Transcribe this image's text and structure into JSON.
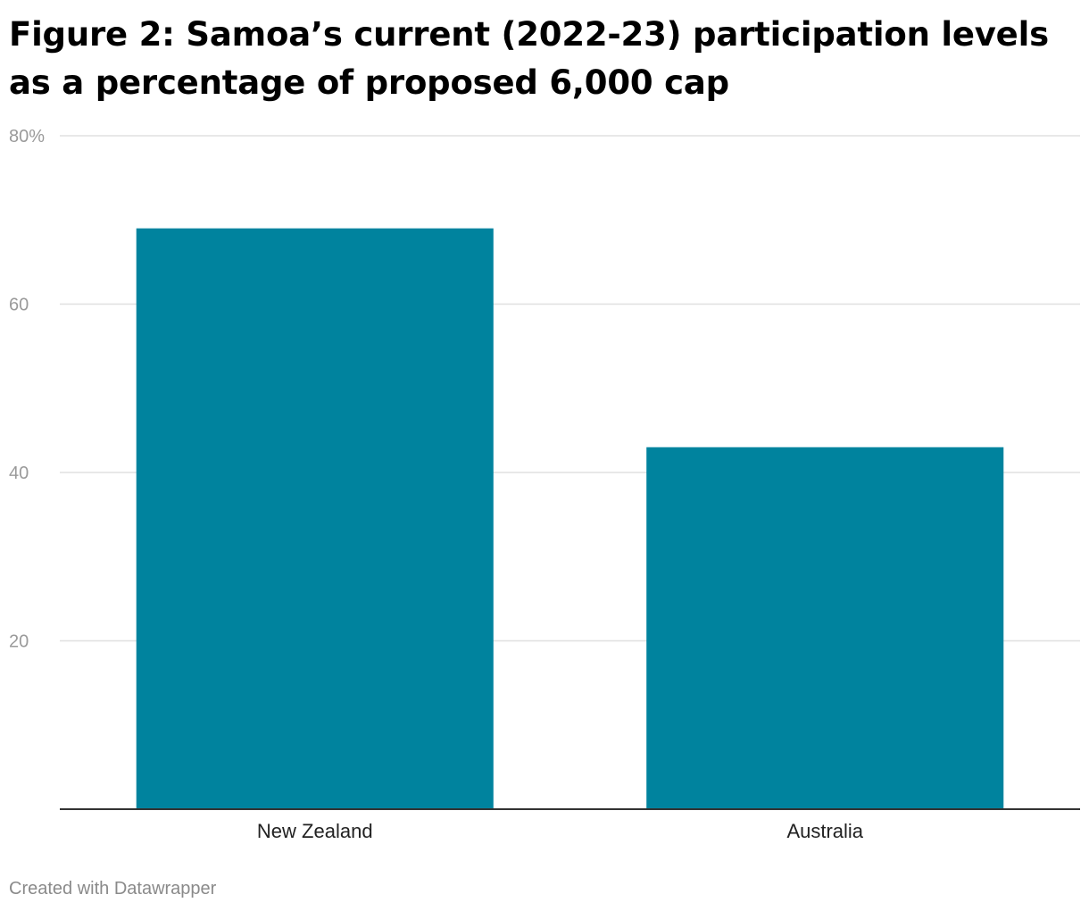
{
  "title": "Figure 2: Samoa’s current (2022-23) participation levels as a percentage of proposed 6,000 cap",
  "footer": "Created with Datawrapper",
  "colors": {
    "bar": "#00839e",
    "grid": "#e0e0e0",
    "tick_label": "#9a9a9a",
    "baseline": "#333333",
    "category_label": "#222222"
  },
  "chart_data": {
    "type": "bar",
    "categories": [
      "New Zealand",
      "Australia"
    ],
    "values": [
      69,
      43
    ],
    "ylim": [
      0,
      80
    ],
    "yticks": [
      20,
      40,
      60,
      80
    ],
    "ytick_labels": [
      "20",
      "40",
      "60",
      "80%"
    ],
    "grid": true,
    "xlabel": "",
    "ylabel": ""
  }
}
